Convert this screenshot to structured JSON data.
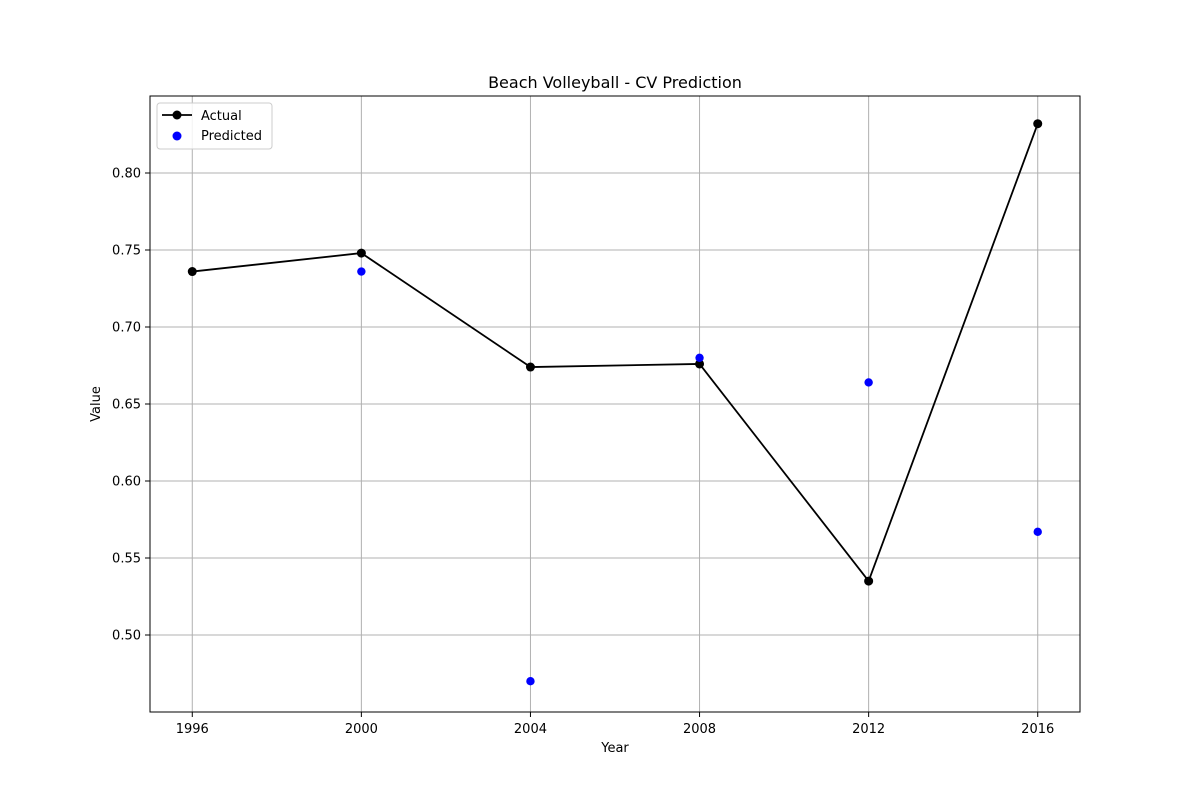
{
  "chart_data": {
    "type": "line",
    "title": "Beach Volleyball - CV Prediction",
    "xlabel": "Year",
    "ylabel": "Value",
    "x": [
      1996,
      2000,
      2004,
      2008,
      2012,
      2016
    ],
    "xlim": [
      1995,
      2017
    ],
    "ylim": [
      0.45,
      0.85
    ],
    "xticks": [
      "1996",
      "2000",
      "2004",
      "2008",
      "2012",
      "2016"
    ],
    "yticks": [
      "0.50",
      "0.55",
      "0.60",
      "0.65",
      "0.70",
      "0.75",
      "0.80"
    ],
    "grid": true,
    "legend_position": "top-left",
    "series": [
      {
        "name": "Actual",
        "style": "line-marker",
        "color": "#000000",
        "x": [
          1996,
          2000,
          2004,
          2008,
          2012,
          2016
        ],
        "values": [
          0.736,
          0.748,
          0.674,
          0.676,
          0.535,
          0.832
        ]
      },
      {
        "name": "Predicted",
        "style": "scatter",
        "color": "#0000ff",
        "x": [
          2000,
          2004,
          2008,
          2012,
          2016
        ],
        "values": [
          0.736,
          0.47,
          0.68,
          0.664,
          0.567
        ]
      }
    ]
  }
}
